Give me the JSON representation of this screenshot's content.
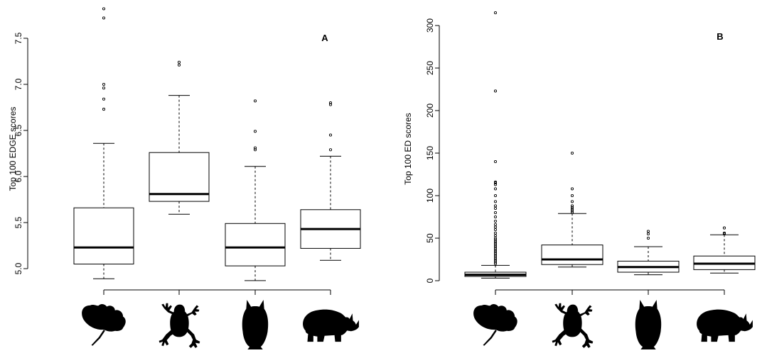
{
  "chart_data": [
    {
      "type": "boxplot",
      "panel_label": "A",
      "xlabel": "",
      "ylabel": "Top 100 EDGE scores",
      "ylim": [
        4.9,
        7.85
      ],
      "yticks": [
        5.0,
        5.5,
        6.0,
        6.5,
        7.0,
        7.5
      ],
      "ytick_labels": [
        "5.0",
        "5.5",
        "6.0",
        "6.5",
        "7.0",
        "7.5"
      ],
      "categories": [
        "plant-silhouette",
        "frog-silhouette",
        "owl-silhouette",
        "rhino-silhouette"
      ],
      "boxes": [
        {
          "category": "plant-silhouette",
          "whisker_low": 4.89,
          "q1": 5.05,
          "median": 5.23,
          "q3": 5.66,
          "whisker_high": 6.36,
          "outliers": [
            6.73,
            6.84,
            6.96,
            7.0,
            7.72,
            7.82
          ]
        },
        {
          "category": "frog-silhouette",
          "whisker_low": 5.59,
          "q1": 5.73,
          "median": 5.81,
          "q3": 6.26,
          "whisker_high": 6.88,
          "outliers": [
            7.21,
            7.24
          ]
        },
        {
          "category": "owl-silhouette",
          "whisker_low": 4.87,
          "q1": 5.03,
          "median": 5.23,
          "q3": 5.49,
          "whisker_high": 6.11,
          "outliers": [
            6.29,
            6.31,
            6.49,
            6.82
          ]
        },
        {
          "category": "rhino-silhouette",
          "whisker_low": 5.09,
          "q1": 5.22,
          "median": 5.43,
          "q3": 5.64,
          "whisker_high": 6.22,
          "outliers": [
            6.29,
            6.45,
            6.78,
            6.8
          ]
        }
      ]
    },
    {
      "type": "boxplot",
      "panel_label": "B",
      "xlabel": "",
      "ylabel": "Top 100 ED scores",
      "ylim": [
        0,
        315
      ],
      "yticks": [
        0,
        50,
        100,
        150,
        200,
        250,
        300
      ],
      "ytick_labels": [
        "0",
        "50",
        "100",
        "150",
        "200",
        "250",
        "300"
      ],
      "categories": [
        "plant-silhouette",
        "frog-silhouette",
        "owl-silhouette",
        "rhino-silhouette"
      ],
      "boxes": [
        {
          "category": "plant-silhouette",
          "whisker_low": 3,
          "q1": 5,
          "median": 7,
          "q3": 10,
          "whisker_high": 18,
          "outliers": [
            20,
            22,
            24,
            26,
            28,
            30,
            32,
            34,
            36,
            38,
            40,
            42,
            44,
            46,
            48,
            50,
            53,
            56,
            60,
            63,
            66,
            70,
            75,
            80,
            85,
            88,
            93,
            100,
            108,
            113,
            115,
            116,
            140,
            223,
            315
          ]
        },
        {
          "category": "frog-silhouette",
          "whisker_low": 16,
          "q1": 19,
          "median": 25,
          "q3": 42,
          "whisker_high": 79,
          "outliers": [
            80,
            82,
            84,
            86,
            88,
            93,
            100,
            108,
            150
          ]
        },
        {
          "category": "owl-silhouette",
          "whisker_low": 7,
          "q1": 10,
          "median": 16,
          "q3": 23,
          "whisker_high": 40,
          "outliers": [
            50,
            55,
            58
          ]
        },
        {
          "category": "rhino-silhouette",
          "whisker_low": 9,
          "q1": 13,
          "median": 20,
          "q3": 29,
          "whisker_high": 54,
          "outliers": [
            55,
            56,
            62
          ]
        }
      ]
    }
  ],
  "colors": {
    "box_fill": "#ffffff",
    "stroke": "#000000",
    "silhouette": "#000000"
  },
  "icons": [
    "plant-silhouette-icon",
    "frog-silhouette-icon",
    "owl-silhouette-icon",
    "rhino-silhouette-icon"
  ]
}
